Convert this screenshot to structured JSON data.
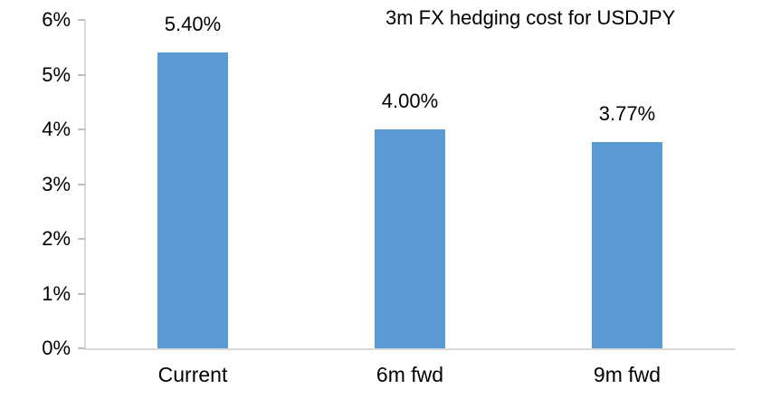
{
  "chart_data": {
    "type": "bar",
    "title": "3m FX hedging cost for USDJPY",
    "categories": [
      "Current",
      "6m fwd",
      "9m fwd"
    ],
    "values": [
      5.4,
      4.0,
      3.77
    ],
    "data_labels": [
      "5.40%",
      "4.00%",
      "3.77%"
    ],
    "xlabel": "",
    "ylabel": "",
    "ylim": [
      0,
      6
    ],
    "ytick_values": [
      0,
      1,
      2,
      3,
      4,
      5,
      6
    ],
    "ytick_labels": [
      "0%",
      "1%",
      "2%",
      "3%",
      "4%",
      "5%",
      "6%"
    ],
    "grid": false,
    "legend": false,
    "bar_color": "#5B9BD5",
    "axis_color": "#D9D9D9",
    "tick_color": "#BFBFBF",
    "text_color": "#000000",
    "background": "#FFFFFF"
  }
}
